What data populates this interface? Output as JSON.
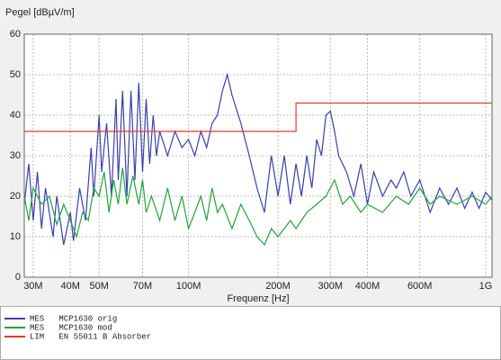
{
  "chart_data": {
    "type": "line",
    "y_label": "Pegel [dBµV/m]",
    "x_label": "Frequenz [Hz]",
    "x_scale": "log",
    "grid": true,
    "xlim": [
      28000000.0,
      1050000000.0
    ],
    "ylim": [
      0,
      60
    ],
    "yticks": [
      0,
      10,
      20,
      30,
      40,
      50,
      60
    ],
    "xticks": [
      {
        "value": 30000000.0,
        "label": "30M"
      },
      {
        "value": 40000000.0,
        "label": "40M"
      },
      {
        "value": 50000000.0,
        "label": "50M"
      },
      {
        "value": 70000000.0,
        "label": "70M"
      },
      {
        "value": 100000000.0,
        "label": "100M"
      },
      {
        "value": 200000000.0,
        "label": "200M"
      },
      {
        "value": 300000000.0,
        "label": "300M"
      },
      {
        "value": 400000000.0,
        "label": "400M"
      },
      {
        "value": 600000000.0,
        "label": "600M"
      },
      {
        "value": 1000000000.0,
        "label": "1G"
      }
    ],
    "series": [
      {
        "name": "MES   MCP1630 orig",
        "color": "#3a3fae",
        "x": [
          28000000.0,
          29000000.0,
          30000000.0,
          31000000.0,
          32000000.0,
          33000000.0,
          35000000.0,
          36000000.0,
          38000000.0,
          40000000.0,
          41000000.0,
          43000000.0,
          45000000.0,
          47000000.0,
          48000000.0,
          50000000.0,
          51000000.0,
          53000000.0,
          55000000.0,
          57000000.0,
          58000000.0,
          60000000.0,
          62000000.0,
          64000000.0,
          66000000.0,
          68000000.0,
          70000000.0,
          72000000.0,
          74000000.0,
          76000000.0,
          78000000.0,
          80000000.0,
          85000000.0,
          90000000.0,
          95000000.0,
          100000000.0,
          105000000.0,
          110000000.0,
          115000000.0,
          120000000.0,
          125000000.0,
          130000000.0,
          135000000.0,
          140000000.0,
          150000000.0,
          160000000.0,
          170000000.0,
          180000000.0,
          190000000.0,
          200000000.0,
          210000000.0,
          220000000.0,
          230000000.0,
          240000000.0,
          250000000.0,
          260000000.0,
          270000000.0,
          280000000.0,
          290000000.0,
          300000000.0,
          310000000.0,
          320000000.0,
          340000000.0,
          360000000.0,
          380000000.0,
          400000000.0,
          420000000.0,
          450000000.0,
          480000000.0,
          500000000.0,
          530000000.0,
          560000000.0,
          600000000.0,
          650000000.0,
          700000000.0,
          750000000.0,
          800000000.0,
          850000000.0,
          900000000.0,
          950000000.0,
          1000000000.0,
          1050000000.0
        ],
        "values": [
          18,
          28,
          14,
          26,
          12,
          22,
          10,
          20,
          8,
          16,
          9,
          22,
          14,
          32,
          20,
          40,
          26,
          38,
          20,
          44,
          24,
          46,
          20,
          46,
          24,
          48,
          26,
          44,
          28,
          40,
          30,
          36,
          30,
          36,
          32,
          34,
          30,
          36,
          32,
          38,
          40,
          46,
          50,
          45,
          38,
          30,
          22,
          16,
          30,
          20,
          30,
          18,
          28,
          20,
          30,
          22,
          34,
          30,
          40,
          41,
          36,
          30,
          26,
          20,
          28,
          18,
          26,
          20,
          24,
          22,
          26,
          20,
          24,
          16,
          22,
          18,
          22,
          17,
          21,
          17,
          21,
          19
        ]
      },
      {
        "name": "MES   MCP1630 mod",
        "color": "#1fa53a",
        "x": [
          28000000.0,
          29000000.0,
          30000000.0,
          32000000.0,
          34000000.0,
          36000000.0,
          38000000.0,
          40000000.0,
          42000000.0,
          44000000.0,
          46000000.0,
          48000000.0,
          50000000.0,
          52000000.0,
          54000000.0,
          56000000.0,
          58000000.0,
          60000000.0,
          62000000.0,
          65000000.0,
          68000000.0,
          70000000.0,
          72000000.0,
          75000000.0,
          80000000.0,
          85000000.0,
          90000000.0,
          95000000.0,
          100000000.0,
          105000000.0,
          110000000.0,
          115000000.0,
          120000000.0,
          125000000.0,
          130000000.0,
          140000000.0,
          150000000.0,
          160000000.0,
          170000000.0,
          180000000.0,
          190000000.0,
          200000000.0,
          210000000.0,
          220000000.0,
          230000000.0,
          250000000.0,
          270000000.0,
          290000000.0,
          310000000.0,
          330000000.0,
          350000000.0,
          380000000.0,
          400000000.0,
          450000000.0,
          500000000.0,
          550000000.0,
          600000000.0,
          650000000.0,
          700000000.0,
          800000000.0,
          900000000.0,
          1000000000.0,
          1050000000.0
        ],
        "values": [
          20,
          14,
          22,
          18,
          20,
          13,
          18,
          14,
          10,
          16,
          14,
          22,
          20,
          26,
          16,
          24,
          18,
          27,
          18,
          25,
          18,
          24,
          16,
          20,
          14,
          22,
          14,
          20,
          12,
          16,
          20,
          14,
          22,
          16,
          18,
          12,
          18,
          14,
          10,
          8,
          12,
          10,
          12,
          14,
          12,
          16,
          18,
          20,
          24,
          18,
          20,
          16,
          18,
          16,
          20,
          18,
          22,
          18,
          20,
          18,
          20,
          18,
          20
        ]
      },
      {
        "name": "LIM   EN 55011 B Absorber",
        "color": "#e8382f",
        "x": [
          28000000.0,
          230000000.0,
          230000000.0,
          1050000000.0
        ],
        "values": [
          36,
          36,
          43,
          43
        ]
      }
    ]
  }
}
